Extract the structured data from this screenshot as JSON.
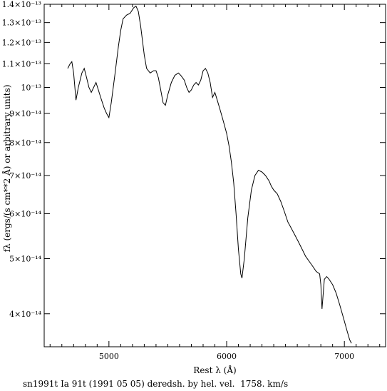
{
  "chart_data": {
    "type": "line",
    "title": "",
    "xlabel": "Rest λ (Å)",
    "ylabel": "fλ (ergs/(s cm**2 Å) or arbitrary units)",
    "caption": "sn1991t Ia 91t (1991 05 05) deredsh. by hel. vel.  1758. km/s",
    "xlim": [
      4450,
      7350
    ],
    "ylim": [
      3.5e-14,
      1.4e-13
    ],
    "yscale": "log",
    "x_ticks": [
      {
        "value": 5000,
        "label": "5000"
      },
      {
        "value": 6000,
        "label": "6000"
      },
      {
        "value": 7000,
        "label": "7000"
      }
    ],
    "y_ticks": [
      {
        "value": 4e-14,
        "label": "4×10⁻¹⁴"
      },
      {
        "value": 5e-14,
        "label": "5×10⁻¹⁴"
      },
      {
        "value": 6e-14,
        "label": "6×10⁻¹⁴"
      },
      {
        "value": 7e-14,
        "label": "7×10⁻¹⁴"
      },
      {
        "value": 8e-14,
        "label": "8×10⁻¹⁴"
      },
      {
        "value": 9e-14,
        "label": "9×10⁻¹⁴"
      },
      {
        "value": 1e-13,
        "label": "10⁻¹³"
      },
      {
        "value": 1.1e-13,
        "label": "1.1×10⁻¹³"
      },
      {
        "value": 1.2e-13,
        "label": "1.2×10⁻¹³"
      },
      {
        "value": 1.3e-13,
        "label": "1.3×10⁻¹³"
      },
      {
        "value": 1.4e-13,
        "label": "1.4×10⁻¹³"
      }
    ],
    "grid": false,
    "series": [
      {
        "name": "",
        "color": "#000000",
        "points": [
          [
            4650,
            1.08e-13
          ],
          [
            4670,
            1.1e-13
          ],
          [
            4685,
            1.11e-13
          ],
          [
            4700,
            1.06e-13
          ],
          [
            4720,
            9.5e-14
          ],
          [
            4740,
            1e-13
          ],
          [
            4770,
            1.06e-13
          ],
          [
            4790,
            1.08e-13
          ],
          [
            4810,
            1.04e-13
          ],
          [
            4830,
            1e-13
          ],
          [
            4850,
            9.8e-14
          ],
          [
            4870,
            1e-13
          ],
          [
            4890,
            1.02e-13
          ],
          [
            4910,
            9.9e-14
          ],
          [
            4930,
            9.6e-14
          ],
          [
            4960,
            9.2e-14
          ],
          [
            4980,
            9e-14
          ],
          [
            5000,
            8.85e-14
          ],
          [
            5020,
            9.4e-14
          ],
          [
            5050,
            1.05e-13
          ],
          [
            5080,
            1.18e-13
          ],
          [
            5100,
            1.26e-13
          ],
          [
            5120,
            1.32e-13
          ],
          [
            5150,
            1.34e-13
          ],
          [
            5180,
            1.35e-13
          ],
          [
            5210,
            1.38e-13
          ],
          [
            5230,
            1.39e-13
          ],
          [
            5250,
            1.36e-13
          ],
          [
            5270,
            1.28e-13
          ],
          [
            5300,
            1.14e-13
          ],
          [
            5320,
            1.08e-13
          ],
          [
            5350,
            1.06e-13
          ],
          [
            5380,
            1.07e-13
          ],
          [
            5400,
            1.07e-13
          ],
          [
            5420,
            1.04e-13
          ],
          [
            5440,
            9.9e-14
          ],
          [
            5460,
            9.4e-14
          ],
          [
            5480,
            9.3e-14
          ],
          [
            5500,
            9.7e-14
          ],
          [
            5530,
            1.02e-13
          ],
          [
            5560,
            1.05e-13
          ],
          [
            5590,
            1.06e-13
          ],
          [
            5610,
            1.05e-13
          ],
          [
            5640,
            1.03e-13
          ],
          [
            5660,
            1e-13
          ],
          [
            5680,
            9.8e-14
          ],
          [
            5700,
            9.9e-14
          ],
          [
            5720,
            1.01e-13
          ],
          [
            5740,
            1.02e-13
          ],
          [
            5760,
            1.01e-13
          ],
          [
            5780,
            1.03e-13
          ],
          [
            5800,
            1.07e-13
          ],
          [
            5820,
            1.08e-13
          ],
          [
            5840,
            1.06e-13
          ],
          [
            5860,
            1.02e-13
          ],
          [
            5880,
            9.6e-14
          ],
          [
            5900,
            9.8e-14
          ],
          [
            5920,
            9.5e-14
          ],
          [
            5940,
            9.2e-14
          ],
          [
            5960,
            8.9e-14
          ],
          [
            5980,
            8.6e-14
          ],
          [
            6000,
            8.3e-14
          ],
          [
            6020,
            7.9e-14
          ],
          [
            6040,
            7.4e-14
          ],
          [
            6060,
            6.8e-14
          ],
          [
            6080,
            6e-14
          ],
          [
            6100,
            5.2e-14
          ],
          [
            6120,
            4.7e-14
          ],
          [
            6130,
            4.62e-14
          ],
          [
            6150,
            5e-14
          ],
          [
            6180,
            5.9e-14
          ],
          [
            6210,
            6.6e-14
          ],
          [
            6240,
            7e-14
          ],
          [
            6270,
            7.15e-14
          ],
          [
            6300,
            7.1e-14
          ],
          [
            6330,
            7e-14
          ],
          [
            6360,
            6.85e-14
          ],
          [
            6380,
            6.7e-14
          ],
          [
            6400,
            6.6e-14
          ],
          [
            6430,
            6.5e-14
          ],
          [
            6460,
            6.3e-14
          ],
          [
            6490,
            6.05e-14
          ],
          [
            6520,
            5.8e-14
          ],
          [
            6550,
            5.65e-14
          ],
          [
            6580,
            5.5e-14
          ],
          [
            6610,
            5.35e-14
          ],
          [
            6640,
            5.2e-14
          ],
          [
            6670,
            5.05e-14
          ],
          [
            6700,
            4.95e-14
          ],
          [
            6730,
            4.85e-14
          ],
          [
            6760,
            4.75e-14
          ],
          [
            6790,
            4.7e-14
          ],
          [
            6800,
            4.5e-14
          ],
          [
            6810,
            4.08e-14
          ],
          [
            6830,
            4.6e-14
          ],
          [
            6850,
            4.65e-14
          ],
          [
            6870,
            4.6e-14
          ],
          [
            6900,
            4.5e-14
          ],
          [
            6930,
            4.35e-14
          ],
          [
            6960,
            4.15e-14
          ],
          [
            6990,
            3.95e-14
          ],
          [
            7020,
            3.75e-14
          ],
          [
            7045,
            3.6e-14
          ],
          [
            7060,
            3.55e-14
          ]
        ]
      }
    ]
  }
}
